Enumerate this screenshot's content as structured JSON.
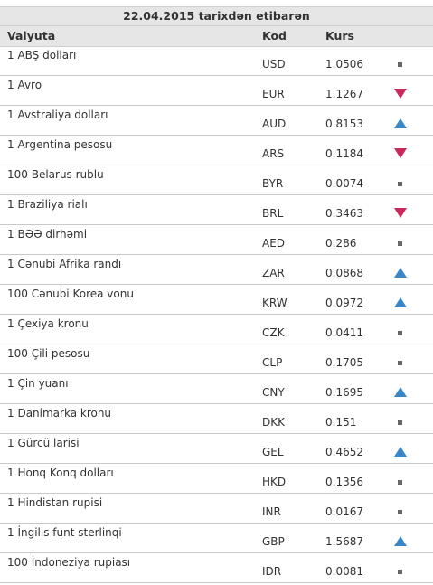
{
  "title": "22.04.2015 tarixdən etibarən",
  "columns": {
    "currency": "Valyuta",
    "code": "Kod",
    "rate": "Kurs"
  },
  "colors": {
    "up": "#3a87c8",
    "down": "#c8285a",
    "flat": "#666666"
  },
  "rows": [
    {
      "name": "1 ABŞ dolları",
      "code": "USD",
      "rate": "1.0506",
      "trend": "flat"
    },
    {
      "name": "1 Avro",
      "code": "EUR",
      "rate": "1.1267",
      "trend": "down"
    },
    {
      "name": "1 Avstraliya dolları",
      "code": "AUD",
      "rate": "0.8153",
      "trend": "up"
    },
    {
      "name": "1 Argentina pesosu",
      "code": "ARS",
      "rate": "0.1184",
      "trend": "down"
    },
    {
      "name": "100 Belarus rublu",
      "code": "BYR",
      "rate": "0.0074",
      "trend": "flat"
    },
    {
      "name": "1 Braziliya rialı",
      "code": "BRL",
      "rate": "0.3463",
      "trend": "down"
    },
    {
      "name": "1 BƏƏ dirhəmi",
      "code": "AED",
      "rate": "0.286",
      "trend": "flat"
    },
    {
      "name": "1 Cənubi Afrika randı",
      "code": "ZAR",
      "rate": "0.0868",
      "trend": "up"
    },
    {
      "name": "100 Cənubi Korea vonu",
      "code": "KRW",
      "rate": "0.0972",
      "trend": "up"
    },
    {
      "name": "1 Çexiya kronu",
      "code": "CZK",
      "rate": "0.0411",
      "trend": "flat"
    },
    {
      "name": "100 Çili pesosu",
      "code": "CLP",
      "rate": "0.1705",
      "trend": "flat"
    },
    {
      "name": "1 Çin yuanı",
      "code": "CNY",
      "rate": "0.1695",
      "trend": "up"
    },
    {
      "name": "1 Danimarka kronu",
      "code": "DKK",
      "rate": "0.151",
      "trend": "flat"
    },
    {
      "name": "1 Gürcü larisi",
      "code": "GEL",
      "rate": "0.4652",
      "trend": "up"
    },
    {
      "name": "1 Honq Konq dolları",
      "code": "HKD",
      "rate": "0.1356",
      "trend": "flat"
    },
    {
      "name": "1 Hindistan rupisi",
      "code": "INR",
      "rate": "0.0167",
      "trend": "flat"
    },
    {
      "name": "1 İngilis funt sterlinqi",
      "code": "GBP",
      "rate": "1.5687",
      "trend": "up"
    },
    {
      "name": "100 İndoneziya rupiası",
      "code": "IDR",
      "rate": "0.0081",
      "trend": "flat"
    }
  ]
}
